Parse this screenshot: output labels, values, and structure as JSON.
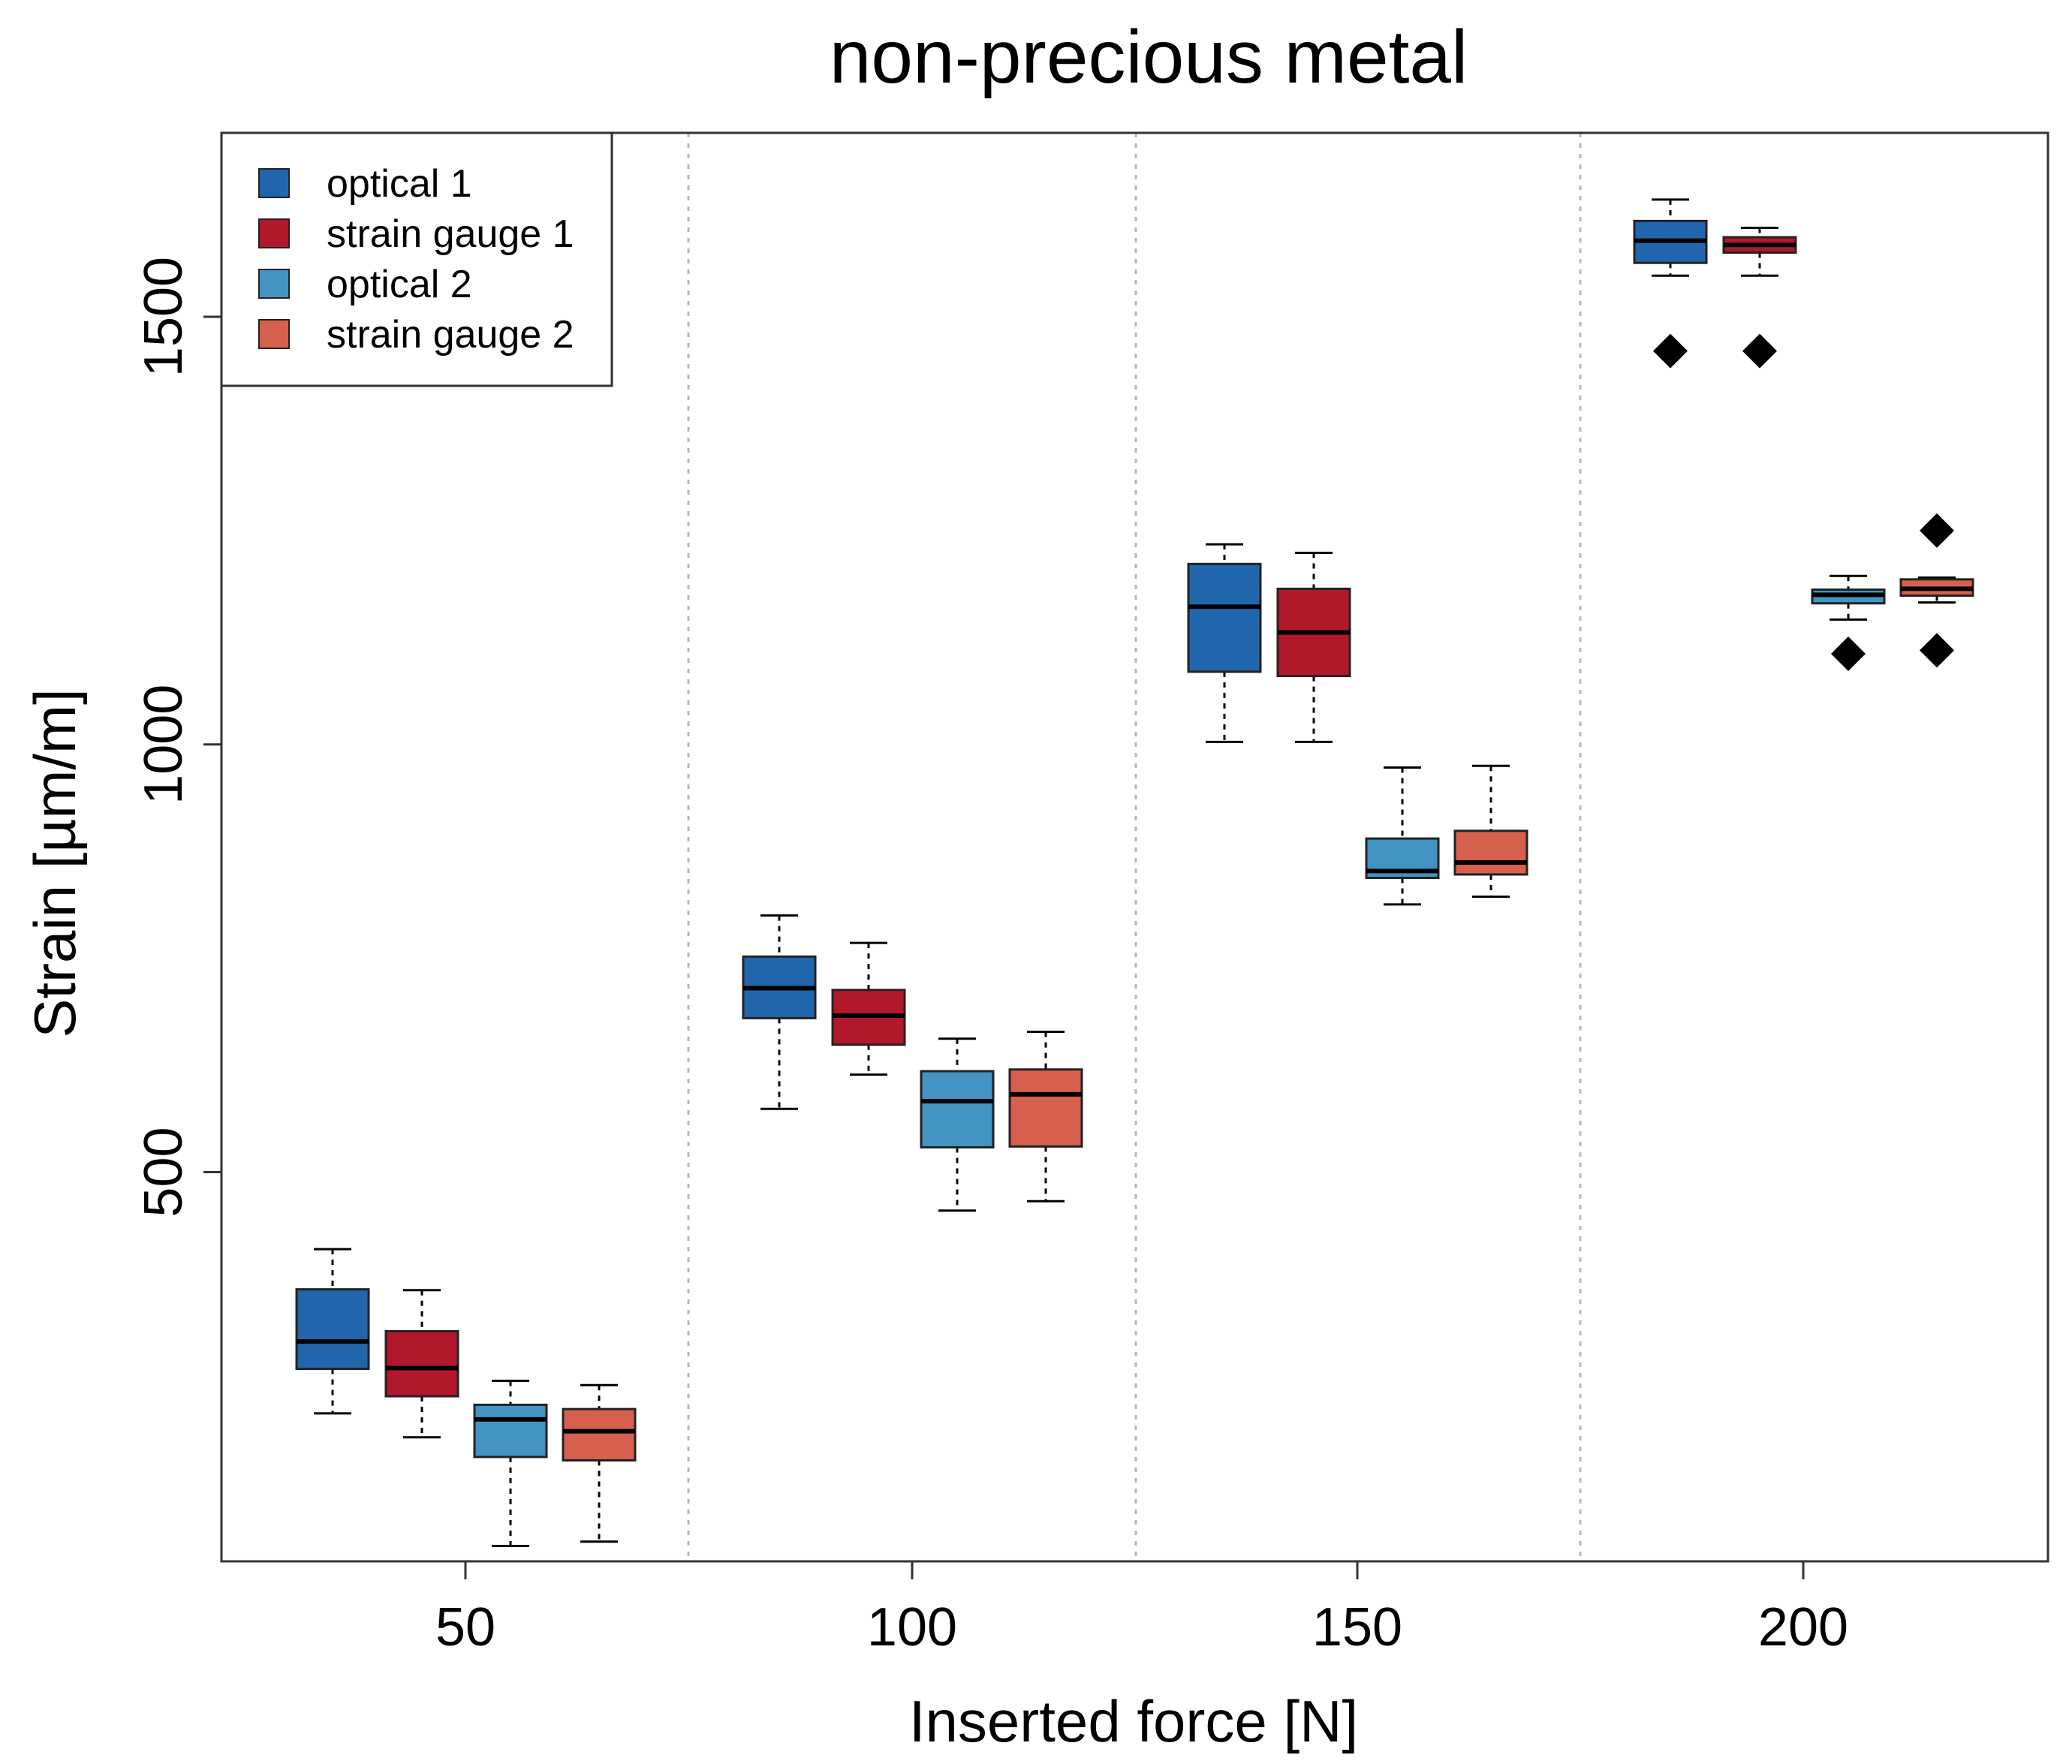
{
  "chart_data": {
    "type": "boxplot",
    "title": "non-precious metal",
    "xlabel": "Inserted force [N]",
    "ylabel": "Strain [µm/m]",
    "categories": [
      "50",
      "100",
      "150",
      "200"
    ],
    "y_ticks": [
      500,
      1000,
      1500
    ],
    "ylim": [
      45,
      1715
    ],
    "grid": "vertical dotted separators between groups",
    "legend_position": "top-left",
    "series": [
      {
        "name": "optical 1",
        "color": "#2166ac",
        "boxes": [
          {
            "category": "50",
            "min": 218,
            "q1": 270,
            "median": 302,
            "q3": 363,
            "max": 410,
            "outliers": []
          },
          {
            "category": "100",
            "min": 574,
            "q1": 680,
            "median": 715,
            "q3": 752,
            "max": 800,
            "outliers": []
          },
          {
            "category": "150",
            "min": 1003,
            "q1": 1085,
            "median": 1161,
            "q3": 1211,
            "max": 1234,
            "outliers": []
          },
          {
            "category": "200",
            "min": 1548,
            "q1": 1563,
            "median": 1589,
            "q3": 1612,
            "max": 1637,
            "outliers": [
              1460
            ]
          }
        ]
      },
      {
        "name": "strain gauge 1",
        "color": "#b2182b",
        "boxes": [
          {
            "category": "50",
            "min": 190,
            "q1": 238,
            "median": 271,
            "q3": 314,
            "max": 362,
            "outliers": []
          },
          {
            "category": "100",
            "min": 614,
            "q1": 649,
            "median": 683,
            "q3": 713,
            "max": 768,
            "outliers": []
          },
          {
            "category": "150",
            "min": 1003,
            "q1": 1080,
            "median": 1131,
            "q3": 1182,
            "max": 1224,
            "outliers": []
          },
          {
            "category": "200",
            "min": 1548,
            "q1": 1575,
            "median": 1584,
            "q3": 1593,
            "max": 1604,
            "outliers": [
              1460
            ]
          }
        ]
      },
      {
        "name": "optical 2",
        "color": "#4393c3",
        "boxes": [
          {
            "category": "50",
            "min": 63,
            "q1": 167,
            "median": 211,
            "q3": 228,
            "max": 256,
            "outliers": []
          },
          {
            "category": "100",
            "min": 455,
            "q1": 529,
            "median": 583,
            "q3": 618,
            "max": 656,
            "outliers": []
          },
          {
            "category": "150",
            "min": 813,
            "q1": 844,
            "median": 852,
            "q3": 890,
            "max": 973,
            "outliers": []
          },
          {
            "category": "200",
            "min": 1146,
            "q1": 1165,
            "median": 1175,
            "q3": 1181,
            "max": 1197,
            "outliers": [
              1106
            ]
          }
        ]
      },
      {
        "name": "strain gauge 2",
        "color": "#d6604d",
        "boxes": [
          {
            "category": "50",
            "min": 68,
            "q1": 163,
            "median": 197,
            "q3": 223,
            "max": 251,
            "outliers": []
          },
          {
            "category": "100",
            "min": 466,
            "q1": 530,
            "median": 591,
            "q3": 620,
            "max": 664,
            "outliers": []
          },
          {
            "category": "150",
            "min": 822,
            "q1": 848,
            "median": 862,
            "q3": 899,
            "max": 975,
            "outliers": []
          },
          {
            "category": "200",
            "min": 1166,
            "q1": 1174,
            "median": 1182,
            "q3": 1193,
            "max": 1195,
            "outliers": [
              1250,
              1110
            ]
          }
        ]
      }
    ]
  }
}
